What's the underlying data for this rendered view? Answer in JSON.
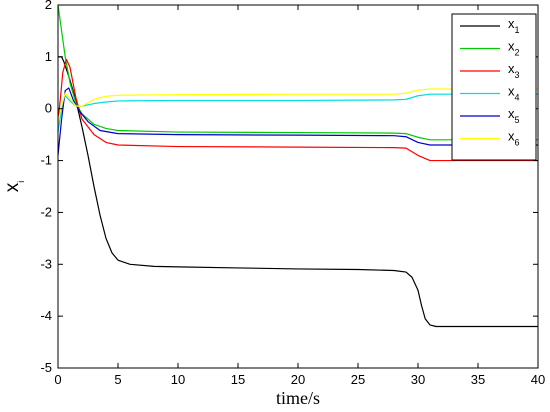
{
  "chart_data": {
    "type": "line",
    "xlabel": "time/s",
    "ylabel_main": "x",
    "ylabel_sub": "i",
    "xlim": [
      0,
      40
    ],
    "ylim": [
      -5,
      2
    ],
    "xticks": [
      0,
      5,
      10,
      15,
      20,
      25,
      30,
      35,
      40
    ],
    "yticks": [
      -5,
      -4,
      -3,
      -2,
      -1,
      0,
      1,
      2
    ],
    "grid": false,
    "legend_position": "top-right",
    "series": [
      {
        "name_main": "x",
        "name_sub": "1",
        "color": "#000000",
        "points": [
          [
            0,
            1.0
          ],
          [
            0.3,
            1.0
          ],
          [
            0.5,
            0.9
          ],
          [
            1.0,
            0.55
          ],
          [
            1.5,
            0.15
          ],
          [
            2.0,
            -0.35
          ],
          [
            2.5,
            -0.9
          ],
          [
            3.0,
            -1.5
          ],
          [
            3.5,
            -2.05
          ],
          [
            4.0,
            -2.5
          ],
          [
            4.5,
            -2.78
          ],
          [
            5.0,
            -2.92
          ],
          [
            6.0,
            -3.0
          ],
          [
            8.0,
            -3.04
          ],
          [
            10.0,
            -3.05
          ],
          [
            15.0,
            -3.07
          ],
          [
            20.0,
            -3.09
          ],
          [
            25.0,
            -3.1
          ],
          [
            28.0,
            -3.12
          ],
          [
            29.0,
            -3.15
          ],
          [
            29.5,
            -3.25
          ],
          [
            30.0,
            -3.5
          ],
          [
            30.3,
            -3.8
          ],
          [
            30.6,
            -4.05
          ],
          [
            31.0,
            -4.17
          ],
          [
            31.5,
            -4.2
          ],
          [
            33.0,
            -4.2
          ],
          [
            40.0,
            -4.2
          ]
        ]
      },
      {
        "name_main": "x",
        "name_sub": "2",
        "color": "#00cc00",
        "points": [
          [
            0,
            2.0
          ],
          [
            0.3,
            1.5
          ],
          [
            0.6,
            1.0
          ],
          [
            1.0,
            0.5
          ],
          [
            1.5,
            0.1
          ],
          [
            2.0,
            -0.1
          ],
          [
            3.0,
            -0.3
          ],
          [
            4.0,
            -0.38
          ],
          [
            5.0,
            -0.42
          ],
          [
            10.0,
            -0.45
          ],
          [
            20.0,
            -0.46
          ],
          [
            28.0,
            -0.47
          ],
          [
            29.0,
            -0.48
          ],
          [
            30.0,
            -0.55
          ],
          [
            31.0,
            -0.6
          ],
          [
            40.0,
            -0.6
          ]
        ]
      },
      {
        "name_main": "x",
        "name_sub": "3",
        "color": "#ff0000",
        "points": [
          [
            0,
            -0.25
          ],
          [
            0.2,
            0.2
          ],
          [
            0.4,
            0.7
          ],
          [
            0.7,
            0.95
          ],
          [
            1.0,
            0.8
          ],
          [
            1.5,
            0.2
          ],
          [
            2.0,
            -0.2
          ],
          [
            3.0,
            -0.5
          ],
          [
            4.0,
            -0.65
          ],
          [
            5.0,
            -0.7
          ],
          [
            10.0,
            -0.73
          ],
          [
            20.0,
            -0.74
          ],
          [
            28.0,
            -0.75
          ],
          [
            29.0,
            -0.76
          ],
          [
            30.0,
            -0.9
          ],
          [
            31.0,
            -1.0
          ],
          [
            40.0,
            -1.0
          ]
        ]
      },
      {
        "name_main": "x",
        "name_sub": "4",
        "color": "#00dddd",
        "points": [
          [
            0,
            -0.45
          ],
          [
            0.3,
            0.0
          ],
          [
            0.6,
            0.25
          ],
          [
            1.0,
            0.15
          ],
          [
            1.5,
            0.05
          ],
          [
            2.0,
            0.05
          ],
          [
            3.0,
            0.1
          ],
          [
            4.0,
            0.13
          ],
          [
            5.0,
            0.15
          ],
          [
            10.0,
            0.16
          ],
          [
            20.0,
            0.16
          ],
          [
            28.0,
            0.17
          ],
          [
            29.0,
            0.18
          ],
          [
            30.0,
            0.25
          ],
          [
            31.0,
            0.28
          ],
          [
            40.0,
            0.28
          ]
        ]
      },
      {
        "name_main": "x",
        "name_sub": "5",
        "color": "#0000cc",
        "points": [
          [
            0,
            -0.9
          ],
          [
            0.3,
            -0.2
          ],
          [
            0.6,
            0.35
          ],
          [
            0.9,
            0.4
          ],
          [
            1.3,
            0.15
          ],
          [
            1.8,
            -0.05
          ],
          [
            2.5,
            -0.25
          ],
          [
            3.5,
            -0.42
          ],
          [
            5.0,
            -0.48
          ],
          [
            10.0,
            -0.5
          ],
          [
            20.0,
            -0.51
          ],
          [
            28.0,
            -0.52
          ],
          [
            29.0,
            -0.54
          ],
          [
            30.0,
            -0.65
          ],
          [
            31.0,
            -0.7
          ],
          [
            40.0,
            -0.7
          ]
        ]
      },
      {
        "name_main": "x",
        "name_sub": "6",
        "color": "#ffff00",
        "points": [
          [
            0,
            -0.25
          ],
          [
            0.3,
            0.05
          ],
          [
            0.6,
            0.3
          ],
          [
            1.0,
            0.2
          ],
          [
            1.5,
            0.05
          ],
          [
            2.0,
            0.05
          ],
          [
            3.0,
            0.18
          ],
          [
            4.0,
            0.24
          ],
          [
            5.0,
            0.26
          ],
          [
            10.0,
            0.27
          ],
          [
            20.0,
            0.28
          ],
          [
            28.0,
            0.28
          ],
          [
            29.0,
            0.3
          ],
          [
            30.0,
            0.36
          ],
          [
            31.0,
            0.38
          ],
          [
            40.0,
            0.38
          ]
        ]
      }
    ]
  }
}
